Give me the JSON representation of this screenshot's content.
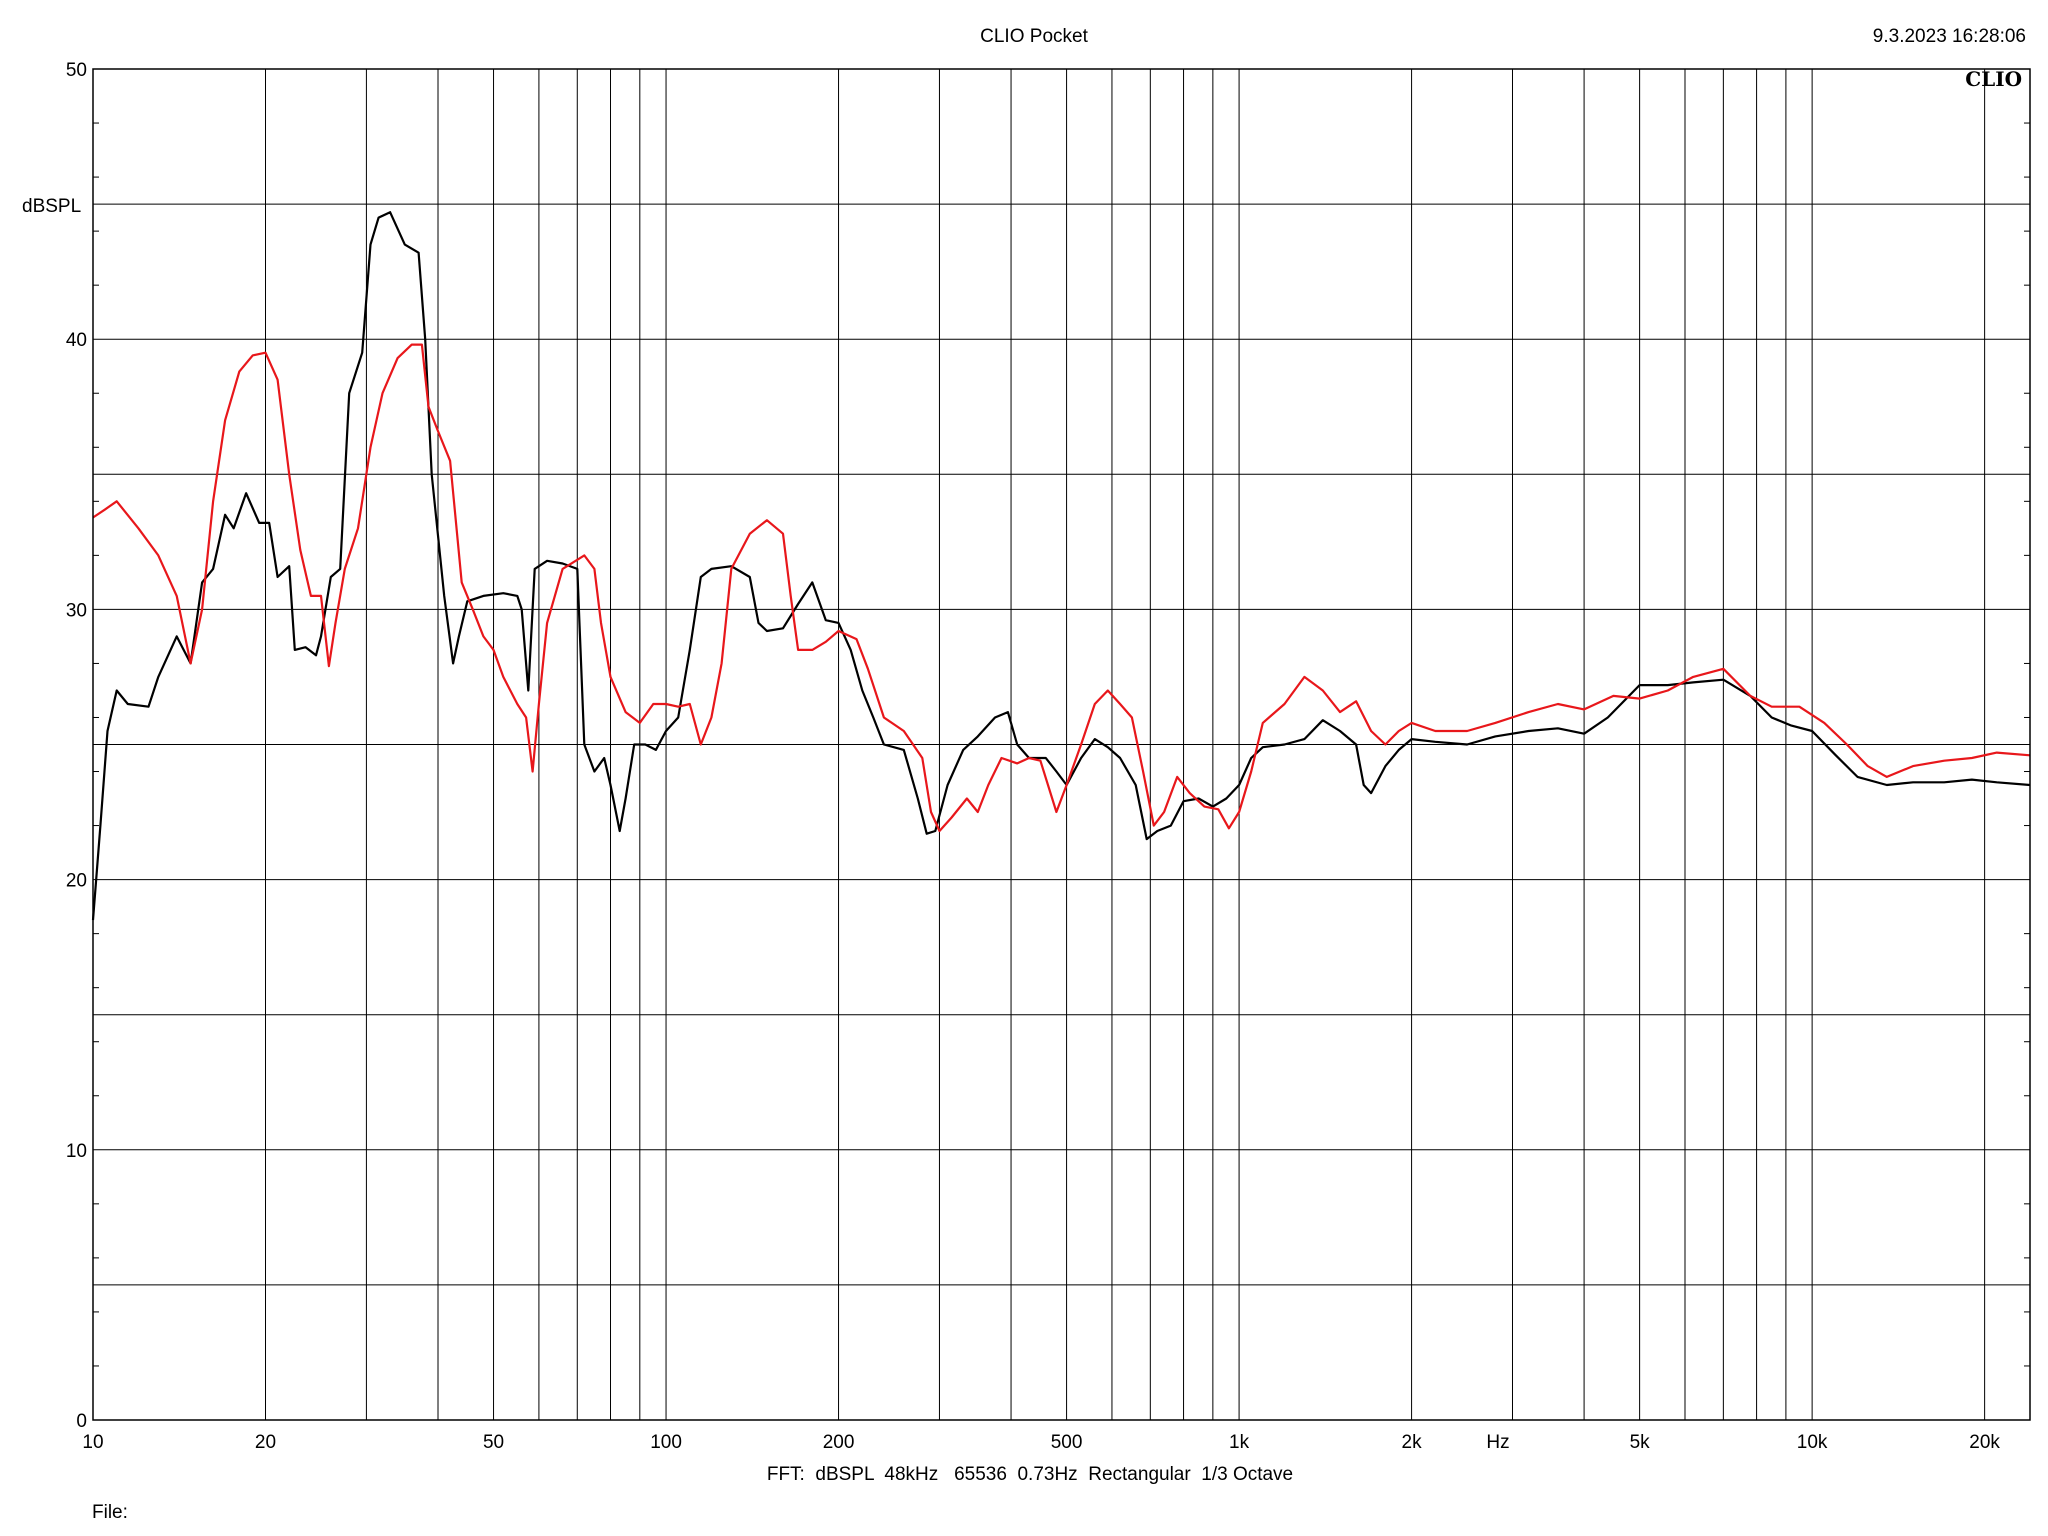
{
  "header": {
    "title": "CLIO Pocket",
    "timestamp": "9.3.2023 16:28:06",
    "brand": "CLIO"
  },
  "footer": {
    "settings": "FFT:  dBSPL  48kHz   65536  0.73Hz  Rectangular  1/3 Octave",
    "file_label": "File:"
  },
  "chart_data": {
    "type": "line",
    "title": "CLIO Pocket",
    "ylabel": "dBSPL",
    "xlabel": "Hz",
    "x_scale": "log",
    "xlim": [
      10,
      24000
    ],
    "ylim": [
      0,
      50
    ],
    "grid": true,
    "x_major_ticks": [
      {
        "value": 10,
        "label": "10"
      },
      {
        "value": 20,
        "label": "20"
      },
      {
        "value": 50,
        "label": "50"
      },
      {
        "value": 100,
        "label": "100"
      },
      {
        "value": 200,
        "label": "200"
      },
      {
        "value": 500,
        "label": "500"
      },
      {
        "value": 1000,
        "label": "1k"
      },
      {
        "value": 2000,
        "label": "2k"
      },
      {
        "value": 5000,
        "label": "5k"
      },
      {
        "value": 10000,
        "label": "10k"
      },
      {
        "value": 20000,
        "label": "20k"
      }
    ],
    "x_minor_ticks": [
      30,
      40,
      60,
      70,
      80,
      90,
      300,
      400,
      600,
      700,
      800,
      900,
      3000,
      4000,
      6000,
      7000,
      8000,
      9000
    ],
    "y_major_ticks": [
      0,
      10,
      20,
      30,
      40,
      50
    ],
    "y_minor_ticks": [
      5,
      15,
      25,
      35,
      45
    ],
    "series": [
      {
        "color": "#000000",
        "points": [
          [
            10,
            18.5
          ],
          [
            10.3,
            22
          ],
          [
            10.6,
            25.5
          ],
          [
            11,
            27
          ],
          [
            11.5,
            26.5
          ],
          [
            12.5,
            26.4
          ],
          [
            13,
            27.5
          ],
          [
            14,
            29
          ],
          [
            14.8,
            28
          ],
          [
            15.5,
            31
          ],
          [
            16.2,
            31.5
          ],
          [
            17,
            33.5
          ],
          [
            17.6,
            33
          ],
          [
            18.5,
            34.3
          ],
          [
            19.5,
            33.2
          ],
          [
            20.3,
            33.2
          ],
          [
            21,
            31.2
          ],
          [
            22,
            31.6
          ],
          [
            22.5,
            28.5
          ],
          [
            23.5,
            28.6
          ],
          [
            24.5,
            28.3
          ],
          [
            25,
            29
          ],
          [
            26,
            31.2
          ],
          [
            27,
            31.5
          ],
          [
            28,
            38
          ],
          [
            29.5,
            39.5
          ],
          [
            30.5,
            43.5
          ],
          [
            31.5,
            44.5
          ],
          [
            33,
            44.7
          ],
          [
            35,
            43.5
          ],
          [
            37,
            43.2
          ],
          [
            38,
            40
          ],
          [
            39,
            35
          ],
          [
            41,
            30.5
          ],
          [
            42.5,
            28
          ],
          [
            43.5,
            29
          ],
          [
            45,
            30.3
          ],
          [
            48,
            30.5
          ],
          [
            52,
            30.6
          ],
          [
            55,
            30.5
          ],
          [
            56,
            30
          ],
          [
            57.5,
            27
          ],
          [
            59,
            31.5
          ],
          [
            62,
            31.8
          ],
          [
            66,
            31.7
          ],
          [
            70,
            31.5
          ],
          [
            72,
            25
          ],
          [
            75,
            24
          ],
          [
            78,
            24.5
          ],
          [
            80,
            23.5
          ],
          [
            83,
            21.8
          ],
          [
            85,
            23
          ],
          [
            88,
            25
          ],
          [
            92,
            25
          ],
          [
            96,
            24.8
          ],
          [
            100,
            25.5
          ],
          [
            105,
            26
          ],
          [
            110,
            28.5
          ],
          [
            115,
            31.2
          ],
          [
            120,
            31.5
          ],
          [
            130,
            31.6
          ],
          [
            140,
            31.2
          ],
          [
            145,
            29.5
          ],
          [
            150,
            29.2
          ],
          [
            160,
            29.3
          ],
          [
            170,
            30.2
          ],
          [
            180,
            31
          ],
          [
            190,
            29.6
          ],
          [
            200,
            29.5
          ],
          [
            210,
            28.5
          ],
          [
            220,
            27
          ],
          [
            230,
            26
          ],
          [
            240,
            25
          ],
          [
            260,
            24.8
          ],
          [
            275,
            23
          ],
          [
            285,
            21.7
          ],
          [
            295,
            21.8
          ],
          [
            310,
            23.5
          ],
          [
            330,
            24.8
          ],
          [
            350,
            25.3
          ],
          [
            375,
            26
          ],
          [
            395,
            26.2
          ],
          [
            410,
            25
          ],
          [
            430,
            24.5
          ],
          [
            460,
            24.5
          ],
          [
            480,
            24
          ],
          [
            500,
            23.5
          ],
          [
            530,
            24.5
          ],
          [
            560,
            25.2
          ],
          [
            590,
            24.9
          ],
          [
            620,
            24.5
          ],
          [
            660,
            23.5
          ],
          [
            690,
            21.5
          ],
          [
            720,
            21.8
          ],
          [
            760,
            22
          ],
          [
            800,
            22.9
          ],
          [
            850,
            23
          ],
          [
            900,
            22.7
          ],
          [
            950,
            23
          ],
          [
            1000,
            23.5
          ],
          [
            1050,
            24.5
          ],
          [
            1100,
            24.9
          ],
          [
            1200,
            25
          ],
          [
            1300,
            25.2
          ],
          [
            1400,
            25.9
          ],
          [
            1500,
            25.5
          ],
          [
            1600,
            25
          ],
          [
            1650,
            23.5
          ],
          [
            1700,
            23.2
          ],
          [
            1800,
            24.2
          ],
          [
            1900,
            24.8
          ],
          [
            2000,
            25.2
          ],
          [
            2200,
            25.1
          ],
          [
            2500,
            25
          ],
          [
            2800,
            25.3
          ],
          [
            3200,
            25.5
          ],
          [
            3600,
            25.6
          ],
          [
            4000,
            25.4
          ],
          [
            4400,
            26
          ],
          [
            5000,
            27.2
          ],
          [
            5600,
            27.2
          ],
          [
            6200,
            27.3
          ],
          [
            7000,
            27.4
          ],
          [
            7800,
            26.8
          ],
          [
            8500,
            26
          ],
          [
            9200,
            25.7
          ],
          [
            10000,
            25.5
          ],
          [
            11000,
            24.6
          ],
          [
            12000,
            23.8
          ],
          [
            13500,
            23.5
          ],
          [
            15000,
            23.6
          ],
          [
            17000,
            23.6
          ],
          [
            19000,
            23.7
          ],
          [
            21000,
            23.6
          ],
          [
            24000,
            23.5
          ]
        ]
      },
      {
        "color": "#e8171b",
        "points": [
          [
            10,
            33.4
          ],
          [
            10.5,
            33.7
          ],
          [
            11,
            34
          ],
          [
            12,
            33
          ],
          [
            13,
            32
          ],
          [
            14,
            30.5
          ],
          [
            14.8,
            28
          ],
          [
            15.5,
            30
          ],
          [
            16.2,
            34
          ],
          [
            17,
            37
          ],
          [
            18,
            38.8
          ],
          [
            19,
            39.4
          ],
          [
            20,
            39.5
          ],
          [
            21,
            38.5
          ],
          [
            22,
            35
          ],
          [
            23,
            32.2
          ],
          [
            24,
            30.5
          ],
          [
            25,
            30.5
          ],
          [
            25.8,
            27.9
          ],
          [
            26.5,
            29.5
          ],
          [
            27.5,
            31.5
          ],
          [
            29,
            33
          ],
          [
            30.5,
            36
          ],
          [
            32,
            38
          ],
          [
            34,
            39.3
          ],
          [
            36,
            39.8
          ],
          [
            37.5,
            39.8
          ],
          [
            38.5,
            37.5
          ],
          [
            40,
            36.6
          ],
          [
            42,
            35.5
          ],
          [
            44,
            31
          ],
          [
            46,
            30
          ],
          [
            48,
            29
          ],
          [
            50,
            28.5
          ],
          [
            52,
            27.5
          ],
          [
            55,
            26.5
          ],
          [
            57,
            26
          ],
          [
            58.5,
            24
          ],
          [
            60,
            26.5
          ],
          [
            62,
            29.5
          ],
          [
            66,
            31.5
          ],
          [
            72,
            32
          ],
          [
            75,
            31.5
          ],
          [
            77,
            29.5
          ],
          [
            80,
            27.5
          ],
          [
            85,
            26.2
          ],
          [
            90,
            25.8
          ],
          [
            95,
            26.5
          ],
          [
            100,
            26.5
          ],
          [
            105,
            26.4
          ],
          [
            110,
            26.5
          ],
          [
            115,
            25
          ],
          [
            120,
            26
          ],
          [
            125,
            28
          ],
          [
            130,
            31.5
          ],
          [
            140,
            32.8
          ],
          [
            150,
            33.3
          ],
          [
            160,
            32.8
          ],
          [
            165,
            30.5
          ],
          [
            170,
            28.5
          ],
          [
            180,
            28.5
          ],
          [
            190,
            28.8
          ],
          [
            200,
            29.2
          ],
          [
            215,
            28.9
          ],
          [
            225,
            27.8
          ],
          [
            240,
            26
          ],
          [
            260,
            25.5
          ],
          [
            280,
            24.5
          ],
          [
            290,
            22.5
          ],
          [
            300,
            21.8
          ],
          [
            315,
            22.3
          ],
          [
            335,
            23
          ],
          [
            350,
            22.5
          ],
          [
            365,
            23.5
          ],
          [
            385,
            24.5
          ],
          [
            410,
            24.3
          ],
          [
            430,
            24.5
          ],
          [
            450,
            24.4
          ],
          [
            480,
            22.5
          ],
          [
            500,
            23.5
          ],
          [
            530,
            25
          ],
          [
            560,
            26.5
          ],
          [
            590,
            27
          ],
          [
            620,
            26.5
          ],
          [
            650,
            26
          ],
          [
            680,
            24
          ],
          [
            710,
            22
          ],
          [
            740,
            22.5
          ],
          [
            780,
            23.8
          ],
          [
            820,
            23.2
          ],
          [
            870,
            22.7
          ],
          [
            920,
            22.6
          ],
          [
            960,
            21.9
          ],
          [
            1000,
            22.5
          ],
          [
            1050,
            24
          ],
          [
            1100,
            25.8
          ],
          [
            1200,
            26.5
          ],
          [
            1300,
            27.5
          ],
          [
            1400,
            27
          ],
          [
            1500,
            26.2
          ],
          [
            1600,
            26.6
          ],
          [
            1700,
            25.5
          ],
          [
            1800,
            25
          ],
          [
            1900,
            25.5
          ],
          [
            2000,
            25.8
          ],
          [
            2200,
            25.5
          ],
          [
            2500,
            25.5
          ],
          [
            2800,
            25.8
          ],
          [
            3200,
            26.2
          ],
          [
            3600,
            26.5
          ],
          [
            4000,
            26.3
          ],
          [
            4500,
            26.8
          ],
          [
            5000,
            26.7
          ],
          [
            5600,
            27
          ],
          [
            6200,
            27.5
          ],
          [
            7000,
            27.8
          ],
          [
            7800,
            26.8
          ],
          [
            8500,
            26.4
          ],
          [
            9500,
            26.4
          ],
          [
            10500,
            25.8
          ],
          [
            11500,
            25
          ],
          [
            12500,
            24.2
          ],
          [
            13500,
            23.8
          ],
          [
            15000,
            24.2
          ],
          [
            17000,
            24.4
          ],
          [
            19000,
            24.5
          ],
          [
            21000,
            24.7
          ],
          [
            24000,
            24.6
          ]
        ]
      }
    ]
  }
}
